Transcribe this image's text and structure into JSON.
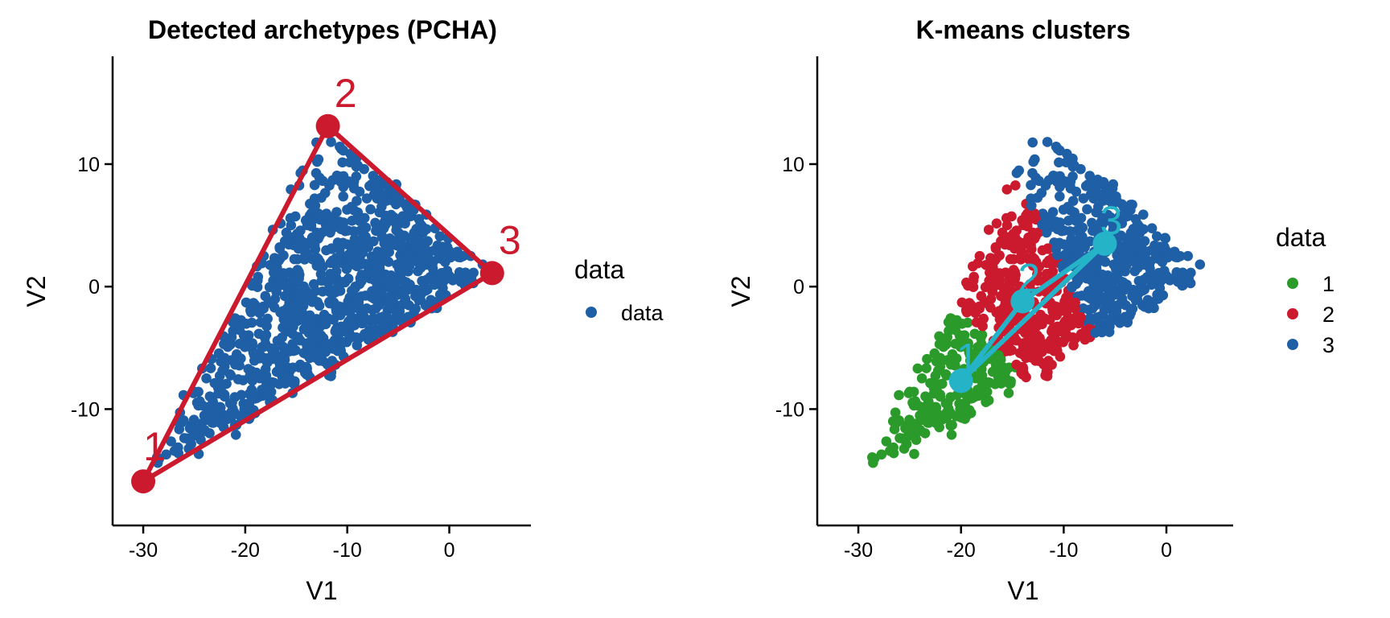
{
  "colors": {
    "data_point": "#1F5FA6",
    "archetype": "#CB1A2E",
    "cluster_1": "#2A9A2A",
    "cluster_2": "#CB1A2E",
    "cluster_3": "#1F5FA6",
    "centroid": "#25B3C8"
  },
  "chart_data": [
    {
      "type": "scatter",
      "title": "Detected archetypes (PCHA)",
      "xlabel": "V1",
      "ylabel": "V2",
      "xlim": [
        -33,
        8
      ],
      "ylim": [
        -19.5,
        18.8
      ],
      "x_ticks": [
        -30,
        -20,
        -10,
        0
      ],
      "x_tick_labels": [
        "-30",
        "-20",
        "-10",
        "0"
      ],
      "y_ticks": [
        -10,
        0,
        10
      ],
      "y_tick_labels": [
        "-10",
        "0",
        "10"
      ],
      "grid": false,
      "legend": {
        "title": "data",
        "position": "right",
        "entries": [
          {
            "label": "data",
            "color": "#1F5FA6"
          }
        ]
      },
      "series": [
        {
          "name": "data",
          "color": "#1F5FA6",
          "note_points": "approx. 1000 points filling the triangle"
        }
      ],
      "archetypes": [
        {
          "label": "1",
          "x": -30.0,
          "y": -15.9
        },
        {
          "label": "2",
          "x": -11.9,
          "y": 13.1
        },
        {
          "label": "3",
          "x": 4.2,
          "y": 1.1
        }
      ]
    },
    {
      "type": "scatter",
      "title": "K-means clusters",
      "xlabel": "V1",
      "ylabel": "V2",
      "xlim": [
        -34,
        6.5
      ],
      "ylim": [
        -19.5,
        18.8
      ],
      "x_ticks": [
        -30,
        -20,
        -10,
        0
      ],
      "x_tick_labels": [
        "-30",
        "-20",
        "-10",
        "0"
      ],
      "y_ticks": [
        -10,
        0,
        10
      ],
      "y_tick_labels": [
        "-10",
        "0",
        "10"
      ],
      "grid": false,
      "legend": {
        "title": "data",
        "position": "right",
        "entries": [
          {
            "label": "1",
            "color": "#2A9A2A"
          },
          {
            "label": "2",
            "color": "#CB1A2E"
          },
          {
            "label": "3",
            "color": "#1F5FA6"
          }
        ]
      },
      "series": [
        {
          "name": "1",
          "color": "#2A9A2A"
        },
        {
          "name": "2",
          "color": "#CB1A2E"
        },
        {
          "name": "3",
          "color": "#1F5FA6"
        }
      ],
      "centroids": [
        {
          "label": "1",
          "x": -20.0,
          "y": -7.7
        },
        {
          "label": "2",
          "x": -14.0,
          "y": -1.2
        },
        {
          "label": "3",
          "x": -6.0,
          "y": 3.5
        }
      ]
    }
  ]
}
